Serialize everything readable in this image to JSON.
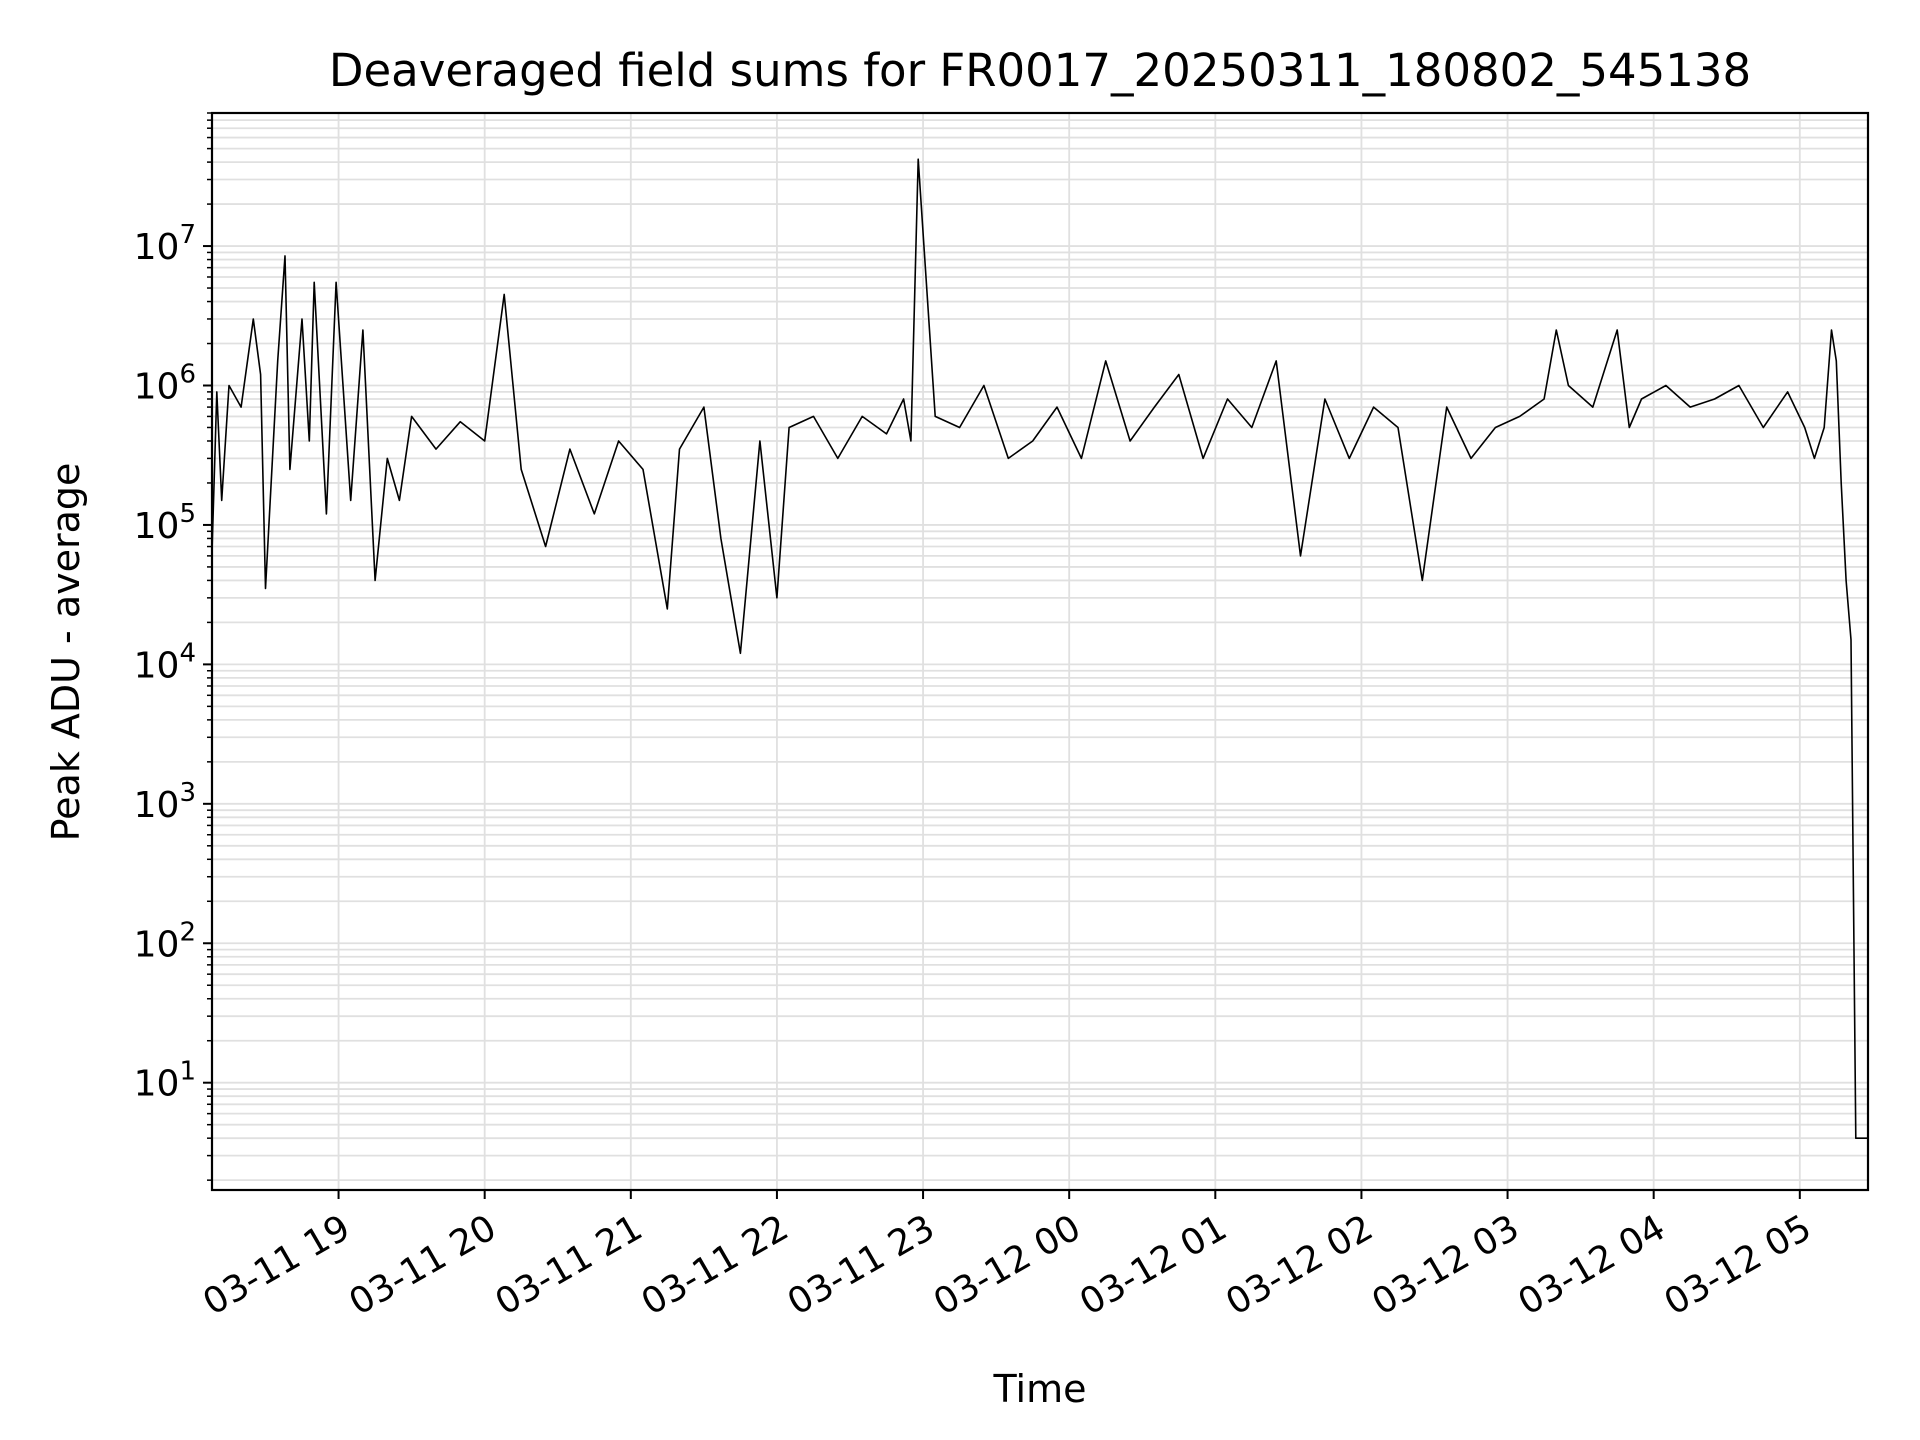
{
  "chart_data": {
    "type": "line",
    "title": "Deaveraged field sums for FR0017_20250311_180802_545138",
    "xlabel": "Time",
    "ylabel": "Peak ADU - average",
    "x_scale": "time",
    "y_scale": "log",
    "xlim": [
      "2025-03-11 18:08:02",
      "2025-03-12 05:28:00"
    ],
    "ylim": [
      1.7,
      90000000
    ],
    "grid": true,
    "legend": "none",
    "line_color": "#000000",
    "grid_color": "#e0e0e0",
    "x_ticks": [
      {
        "t": "2025-03-11 19:00",
        "label": "03-11 19"
      },
      {
        "t": "2025-03-11 20:00",
        "label": "03-11 20"
      },
      {
        "t": "2025-03-11 21:00",
        "label": "03-11 21"
      },
      {
        "t": "2025-03-11 22:00",
        "label": "03-11 22"
      },
      {
        "t": "2025-03-11 23:00",
        "label": "03-11 23"
      },
      {
        "t": "2025-03-12 00:00",
        "label": "03-12 00"
      },
      {
        "t": "2025-03-12 01:00",
        "label": "03-12 01"
      },
      {
        "t": "2025-03-12 02:00",
        "label": "03-12 02"
      },
      {
        "t": "2025-03-12 03:00",
        "label": "03-12 03"
      },
      {
        "t": "2025-03-12 04:00",
        "label": "03-12 04"
      },
      {
        "t": "2025-03-12 05:00",
        "label": "03-12 05"
      }
    ],
    "y_ticks": [
      {
        "value": 10,
        "base": "10",
        "exp": "1"
      },
      {
        "value": 100,
        "base": "10",
        "exp": "2"
      },
      {
        "value": 1000,
        "base": "10",
        "exp": "3"
      },
      {
        "value": 10000,
        "base": "10",
        "exp": "4"
      },
      {
        "value": 100000,
        "base": "10",
        "exp": "5"
      },
      {
        "value": 1000000,
        "base": "10",
        "exp": "6"
      },
      {
        "value": 10000000,
        "base": "10",
        "exp": "7"
      }
    ],
    "series": [
      {
        "x": [
          "2025-03-11 18:08",
          "2025-03-11 18:10",
          "2025-03-11 18:12",
          "2025-03-11 18:15",
          "2025-03-11 18:20",
          "2025-03-11 18:25",
          "2025-03-11 18:28",
          "2025-03-11 18:30",
          "2025-03-11 18:35",
          "2025-03-11 18:38",
          "2025-03-11 18:40",
          "2025-03-11 18:45",
          "2025-03-11 18:48",
          "2025-03-11 18:50",
          "2025-03-11 18:55",
          "2025-03-11 18:59",
          "2025-03-11 19:05",
          "2025-03-11 19:10",
          "2025-03-11 19:15",
          "2025-03-11 19:20",
          "2025-03-11 19:25",
          "2025-03-11 19:30",
          "2025-03-11 19:40",
          "2025-03-11 19:50",
          "2025-03-11 20:00",
          "2025-03-11 20:08",
          "2025-03-11 20:15",
          "2025-03-11 20:25",
          "2025-03-11 20:35",
          "2025-03-11 20:45",
          "2025-03-11 20:55",
          "2025-03-11 21:05",
          "2025-03-11 21:15",
          "2025-03-11 21:20",
          "2025-03-11 21:30",
          "2025-03-11 21:37",
          "2025-03-11 21:45",
          "2025-03-11 21:53",
          "2025-03-11 22:00",
          "2025-03-11 22:05",
          "2025-03-11 22:15",
          "2025-03-11 22:25",
          "2025-03-11 22:35",
          "2025-03-11 22:45",
          "2025-03-11 22:52",
          "2025-03-11 22:55",
          "2025-03-11 22:58",
          "2025-03-11 23:05",
          "2025-03-11 23:15",
          "2025-03-11 23:25",
          "2025-03-11 23:35",
          "2025-03-11 23:45",
          "2025-03-11 23:55",
          "2025-03-12 00:05",
          "2025-03-12 00:15",
          "2025-03-12 00:25",
          "2025-03-12 00:35",
          "2025-03-12 00:45",
          "2025-03-12 00:55",
          "2025-03-12 01:05",
          "2025-03-12 01:15",
          "2025-03-12 01:25",
          "2025-03-12 01:35",
          "2025-03-12 01:45",
          "2025-03-12 01:55",
          "2025-03-12 02:05",
          "2025-03-12 02:15",
          "2025-03-12 02:25",
          "2025-03-12 02:35",
          "2025-03-12 02:45",
          "2025-03-12 02:55",
          "2025-03-12 03:05",
          "2025-03-12 03:15",
          "2025-03-12 03:20",
          "2025-03-12 03:25",
          "2025-03-12 03:35",
          "2025-03-12 03:45",
          "2025-03-12 03:50",
          "2025-03-12 03:55",
          "2025-03-12 04:05",
          "2025-03-12 04:15",
          "2025-03-12 04:25",
          "2025-03-12 04:35",
          "2025-03-12 04:45",
          "2025-03-12 04:55",
          "2025-03-12 05:02",
          "2025-03-12 05:06",
          "2025-03-12 05:10",
          "2025-03-12 05:13",
          "2025-03-12 05:15",
          "2025-03-12 05:17",
          "2025-03-12 05:19",
          "2025-03-12 05:21",
          "2025-03-12 05:23",
          "2025-03-12 05:28"
        ],
        "y": [
          60000,
          900000,
          150000,
          1000000,
          700000,
          3000000,
          1200000,
          35000,
          1500000,
          8500000,
          250000,
          3000000,
          400000,
          5500000,
          120000,
          5500000,
          150000,
          2500000,
          40000,
          300000,
          150000,
          600000,
          350000,
          550000,
          400000,
          4500000,
          250000,
          70000,
          350000,
          120000,
          400000,
          250000,
          25000,
          350000,
          700000,
          80000,
          12000,
          400000,
          30000,
          500000,
          600000,
          300000,
          600000,
          450000,
          800000,
          400000,
          42000000,
          600000,
          500000,
          1000000,
          300000,
          400000,
          700000,
          300000,
          1500000,
          400000,
          700000,
          1200000,
          300000,
          800000,
          500000,
          1500000,
          60000,
          800000,
          300000,
          700000,
          500000,
          40000,
          700000,
          300000,
          500000,
          600000,
          800000,
          2500000,
          1000000,
          700000,
          2500000,
          500000,
          800000,
          1000000,
          700000,
          800000,
          1000000,
          500000,
          900000,
          500000,
          300000,
          500000,
          2500000,
          1500000,
          200000,
          40000,
          15000,
          4,
          4
        ]
      }
    ]
  }
}
